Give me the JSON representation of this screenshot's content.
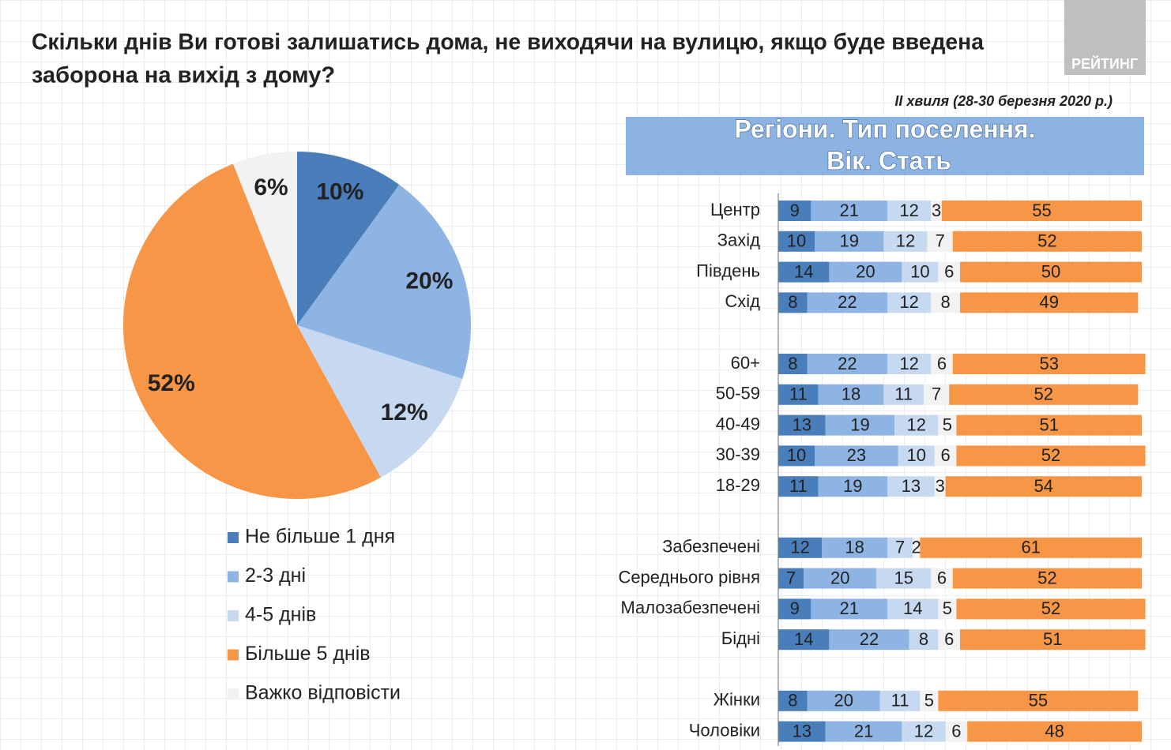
{
  "logo": "РЕЙТИНГ",
  "chart_data": [
    {
      "type": "pie",
      "title": [
        "Скільки днів Ви готові залишатись дома, не виходячи на вулицю, якщо буде введена",
        "заборона на вихід з дому?"
      ],
      "categories": [
        "Не більше 1 дня",
        "2-3 дні",
        "4-5 днів",
        "Більше 5 днів",
        "Важко відповісти"
      ],
      "values": [
        10,
        20,
        12,
        52,
        6
      ],
      "value_labels": [
        "10%",
        "20%",
        "12%",
        "52%",
        "6%"
      ],
      "colors": [
        "#4a7ebb",
        "#8eb4e3",
        "#c6d9f1",
        "#f79646",
        "#f2f2f2"
      ]
    },
    {
      "type": "stacked-bar-h",
      "subtitle": "II хвиля (28-30 березня 2020 р.)",
      "header": [
        "Регіони. Тип поселення.",
        "Вік. Стать"
      ],
      "categories": [
        "Центр",
        "Захід",
        "Південь",
        "Схід",
        null,
        "60+",
        "50-59",
        "40-49",
        "30-39",
        "18-29",
        null,
        "Забезпечені",
        "Середнього рівня",
        "Малозабезпечені",
        "Бідні",
        null,
        "Жінки",
        "Чоловіки"
      ],
      "xlim": [
        0,
        100
      ],
      "series": [
        {
          "color": "#4a7ebb",
          "values": [
            9,
            10,
            14,
            8,
            null,
            8,
            11,
            13,
            10,
            11,
            null,
            12,
            7,
            9,
            14,
            null,
            8,
            13
          ]
        },
        {
          "color": "#8eb4e3",
          "values": [
            21,
            19,
            20,
            22,
            null,
            22,
            18,
            19,
            23,
            19,
            null,
            18,
            20,
            21,
            22,
            null,
            20,
            21
          ]
        },
        {
          "color": "#c6d9f1",
          "values": [
            12,
            12,
            10,
            12,
            null,
            12,
            11,
            12,
            10,
            13,
            null,
            7,
            15,
            14,
            8,
            null,
            11,
            12
          ]
        },
        {
          "color": "#f2f2f2",
          "values": [
            3,
            7,
            6,
            8,
            null,
            6,
            7,
            5,
            6,
            3,
            null,
            2,
            6,
            5,
            6,
            null,
            5,
            6
          ]
        },
        {
          "color": "#f79646",
          "values": [
            55,
            52,
            50,
            49,
            null,
            53,
            52,
            51,
            52,
            54,
            null,
            61,
            52,
            52,
            51,
            null,
            55,
            48
          ]
        }
      ]
    }
  ]
}
